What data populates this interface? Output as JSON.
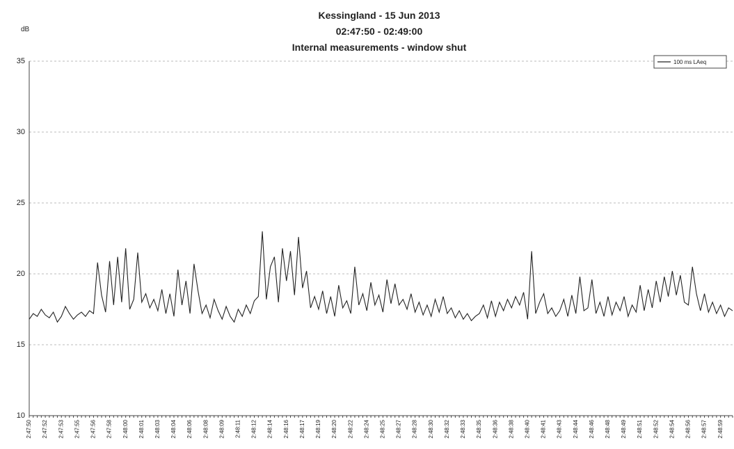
{
  "chart_data": {
    "type": "line",
    "title": "Kessingland - 15 Jun 2013",
    "subtitle": "02:47:50 - 02:49:00",
    "subtitle2": "Internal measurements - window shut",
    "y_label": "dB",
    "ylim": [
      10,
      35
    ],
    "yticks": [
      10,
      15,
      20,
      25,
      30,
      35
    ],
    "grid": true,
    "legend": "upper right",
    "categories": [
      "2:47:50",
      null,
      null,
      null,
      "2:47:52",
      null,
      null,
      null,
      "2:47:53",
      null,
      null,
      null,
      "2:47:55",
      null,
      null,
      null,
      "2:47:56",
      null,
      null,
      null,
      "2:47:58",
      null,
      null,
      null,
      "2:48:00",
      null,
      null,
      null,
      "2:48:01",
      null,
      null,
      null,
      "2:48:03",
      null,
      null,
      null,
      "2:48:04",
      null,
      null,
      null,
      "2:48:06",
      null,
      null,
      null,
      "2:48:08",
      null,
      null,
      null,
      "2:48:09",
      null,
      null,
      null,
      "2:48:11",
      null,
      null,
      null,
      "2:48:12",
      null,
      null,
      null,
      "2:48:14",
      null,
      null,
      null,
      "2:48:16",
      null,
      null,
      null,
      "2:48:17",
      null,
      null,
      null,
      "2:48:19",
      null,
      null,
      null,
      "2:48:20",
      null,
      null,
      null,
      "2:48:22",
      null,
      null,
      null,
      "2:48:24",
      null,
      null,
      null,
      "2:48:25",
      null,
      null,
      null,
      "2:48:27",
      null,
      null,
      null,
      "2:48:28",
      null,
      null,
      null,
      "2:48:30",
      null,
      null,
      null,
      "2:48:32",
      null,
      null,
      null,
      "2:48:33",
      null,
      null,
      null,
      "2:48:35",
      null,
      null,
      null,
      "2:48:36",
      null,
      null,
      null,
      "2:48:38",
      null,
      null,
      null,
      "2:48:40",
      null,
      null,
      null,
      "2:48:41",
      null,
      null,
      null,
      "2:48:43",
      null,
      null,
      null,
      "2:48:44",
      null,
      null,
      null,
      "2:48:46",
      null,
      null,
      null,
      "2:48:48",
      null,
      null,
      null,
      "2:48:49",
      null,
      null,
      null,
      "2:48:51",
      null,
      null,
      null,
      "2:48:52",
      null,
      null,
      null,
      "2:48:54",
      null,
      null,
      null,
      "2:48:56",
      null,
      null,
      null,
      "2:48:57",
      null,
      null,
      null,
      "2:48:59",
      null,
      null,
      null
    ],
    "series": [
      {
        "name": "100 ms LAeq",
        "color": "#222222",
        "values": [
          16.8,
          17.2,
          17.0,
          17.5,
          17.1,
          16.9,
          17.3,
          16.6,
          17.0,
          17.7,
          17.2,
          16.8,
          17.1,
          17.3,
          17.0,
          17.4,
          17.2,
          20.8,
          18.5,
          17.3,
          20.9,
          17.8,
          21.2,
          18.0,
          21.8,
          17.5,
          18.2,
          21.5,
          18.0,
          18.6,
          17.6,
          18.2,
          17.4,
          18.9,
          17.2,
          18.6,
          17.0,
          20.3,
          17.8,
          19.5,
          17.2,
          20.7,
          18.8,
          17.2,
          17.8,
          16.9,
          18.2,
          17.4,
          16.8,
          17.7,
          17.0,
          16.6,
          17.5,
          17.0,
          17.8,
          17.2,
          18.1,
          18.4,
          23.0,
          18.2,
          20.5,
          21.2,
          18.0,
          21.8,
          19.5,
          21.6,
          18.5,
          22.6,
          19.0,
          20.2,
          17.6,
          18.4,
          17.5,
          18.8,
          17.2,
          18.4,
          17.0,
          19.2,
          17.6,
          18.1,
          17.2,
          20.5,
          17.8,
          18.6,
          17.4,
          19.4,
          17.8,
          18.5,
          17.3,
          19.6,
          17.9,
          19.3,
          17.8,
          18.2,
          17.5,
          18.6,
          17.3,
          18.0,
          17.1,
          17.8,
          17.0,
          18.2,
          17.3,
          18.4,
          17.2,
          17.6,
          16.9,
          17.4,
          16.8,
          17.2,
          16.7,
          17.0,
          17.2,
          17.8,
          16.9,
          18.1,
          17.0,
          18.0,
          17.4,
          18.2,
          17.6,
          18.4,
          17.8,
          18.7,
          16.8,
          21.6,
          17.2,
          18.0,
          18.6,
          17.2,
          17.6,
          17.0,
          17.4,
          18.2,
          17.0,
          18.5,
          17.2,
          19.8,
          17.4,
          17.6,
          19.6,
          17.2,
          18.0,
          17.0,
          18.4,
          17.1,
          18.0,
          17.4,
          18.4,
          17.0,
          17.8,
          17.3,
          19.2,
          17.4,
          18.9,
          17.6,
          19.5,
          18.0,
          19.8,
          18.4,
          20.2,
          18.5,
          19.9,
          18.0,
          17.8,
          20.5,
          18.6,
          17.4,
          18.6,
          17.3,
          18.0,
          17.2,
          17.8,
          17.0,
          17.6,
          17.4
        ]
      }
    ]
  }
}
